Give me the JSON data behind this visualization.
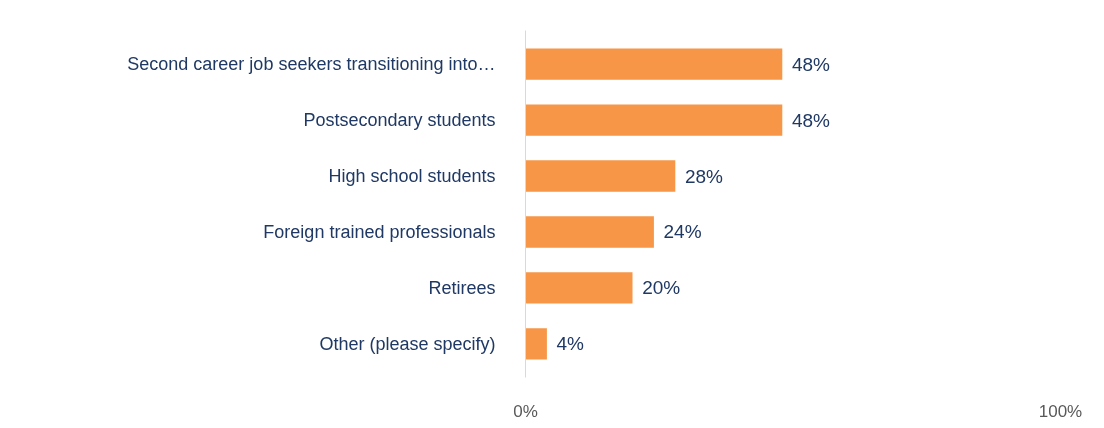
{
  "chart_data": {
    "type": "bar",
    "orientation": "horizontal",
    "categories": [
      "Second career job seekers transitioning into…",
      "Postsecondary students",
      "High school students",
      "Foreign trained professionals",
      "Retirees",
      "Other (please specify)"
    ],
    "values": [
      48,
      48,
      28,
      24,
      20,
      4
    ],
    "value_labels": [
      "48%",
      "48%",
      "28%",
      "24%",
      "20%",
      "4%"
    ],
    "color": "#f79646",
    "xlim": [
      0,
      100
    ],
    "xticks": [
      {
        "value": 0,
        "label": "0%"
      },
      {
        "value": 100,
        "label": "100%"
      }
    ]
  }
}
